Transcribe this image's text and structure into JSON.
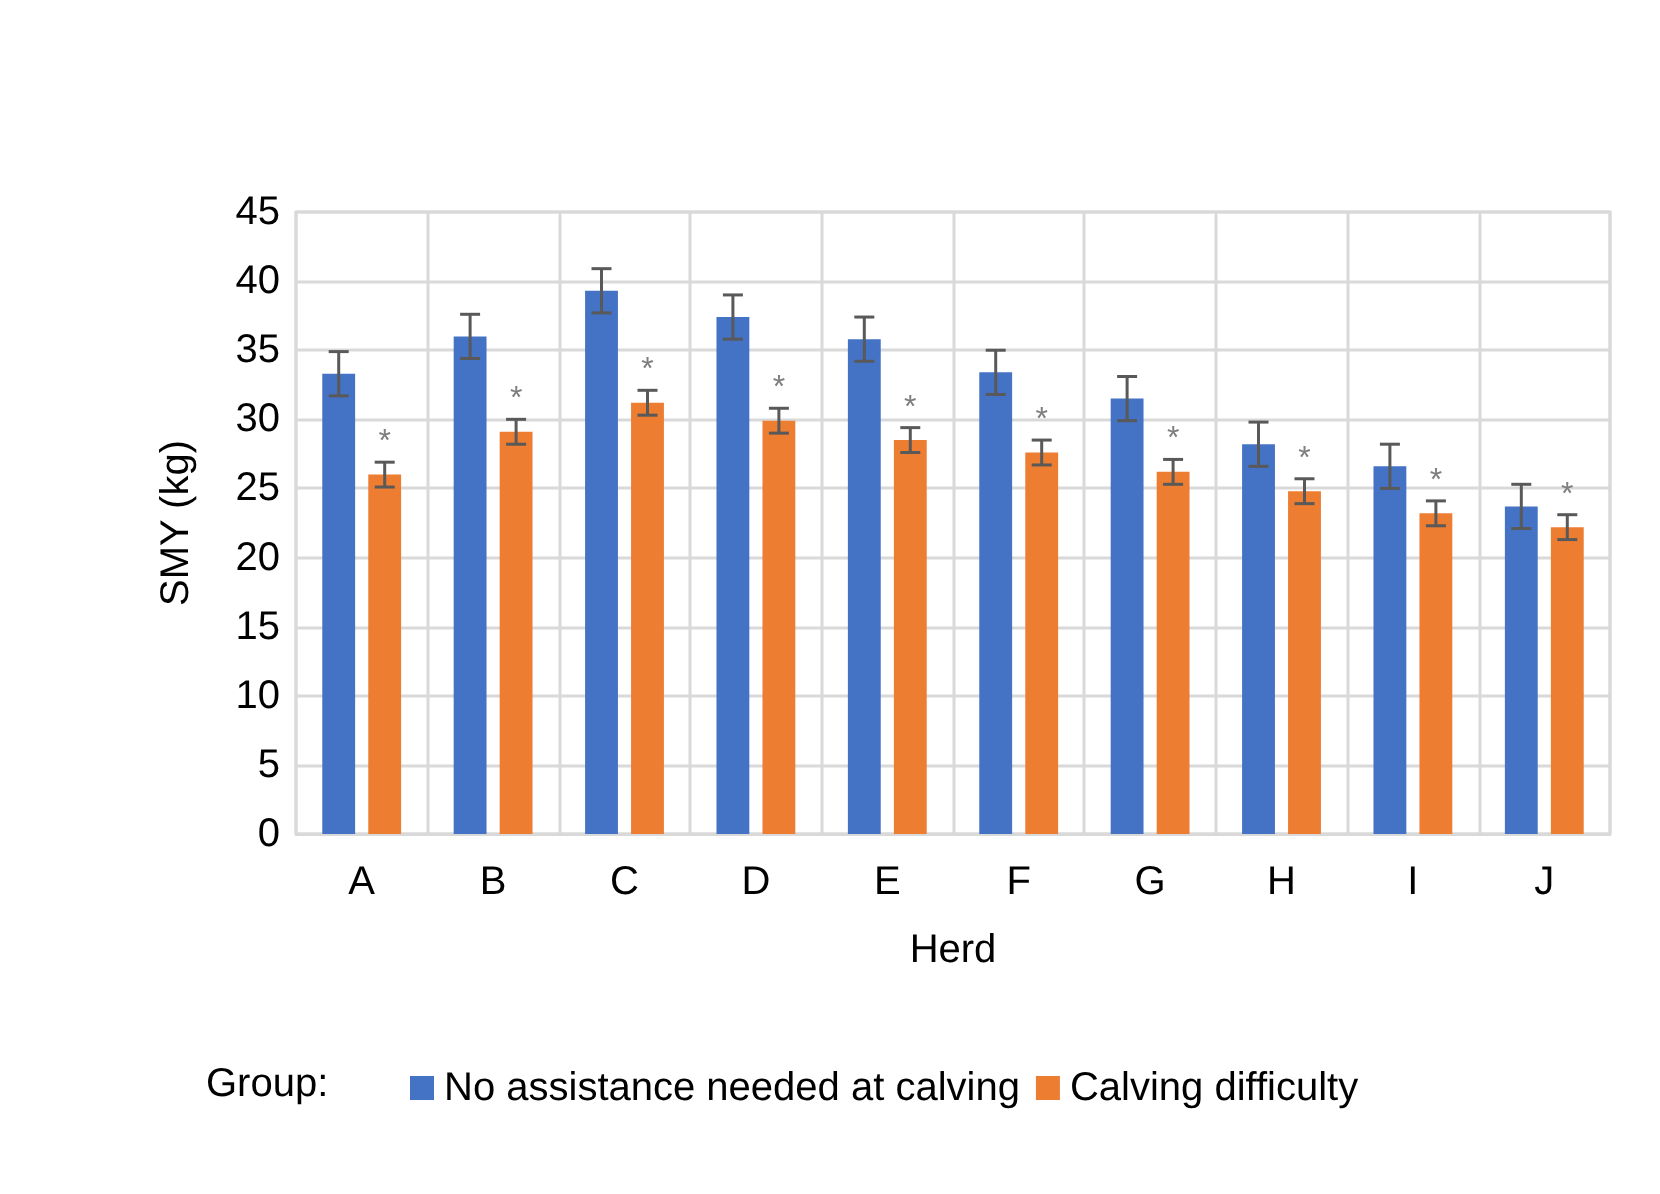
{
  "chart_data": {
    "type": "bar",
    "xlabel": "Herd",
    "ylabel": "SMY (kg)",
    "legend_title": "Group:",
    "categories": [
      "A",
      "B",
      "C",
      "D",
      "E",
      "F",
      "G",
      "H",
      "I",
      "J"
    ],
    "series": [
      {
        "name": "No assistance needed at calving",
        "color": "#4472c4",
        "values": [
          33.3,
          36.0,
          39.3,
          37.4,
          35.8,
          33.4,
          31.5,
          28.2,
          26.6,
          23.7
        ],
        "errors": [
          1.6,
          1.6,
          1.6,
          1.6,
          1.6,
          1.6,
          1.6,
          1.6,
          1.6,
          1.6
        ]
      },
      {
        "name": "Calving difficulty",
        "color": "#ed7d31",
        "values": [
          26.0,
          29.1,
          31.2,
          29.9,
          28.5,
          27.6,
          26.2,
          24.8,
          23.2,
          22.2
        ],
        "errors": [
          0.9,
          0.9,
          0.9,
          0.9,
          0.9,
          0.9,
          0.9,
          0.9,
          0.9,
          0.9
        ]
      }
    ],
    "annotations": [
      {
        "text": "*",
        "x": "A",
        "y": 26.9
      },
      {
        "text": "*",
        "x": "B",
        "y": 30.0
      },
      {
        "text": "*",
        "x": "C",
        "y": 32.1
      },
      {
        "text": "*",
        "x": "D",
        "y": 30.8
      },
      {
        "text": "*",
        "x": "E",
        "y": 29.4
      },
      {
        "text": "*",
        "x": "F",
        "y": 28.5
      },
      {
        "text": "*",
        "x": "G",
        "y": 27.1
      },
      {
        "text": "*",
        "x": "H",
        "y": 25.7
      },
      {
        "text": "*",
        "x": "I",
        "y": 24.1
      },
      {
        "text": "*",
        "x": "J",
        "y": 23.1
      }
    ],
    "ylim": [
      0,
      45
    ],
    "yticks": [
      0,
      5,
      10,
      15,
      20,
      25,
      30,
      35,
      40,
      45
    ],
    "grid": true,
    "legend": "bottom"
  }
}
